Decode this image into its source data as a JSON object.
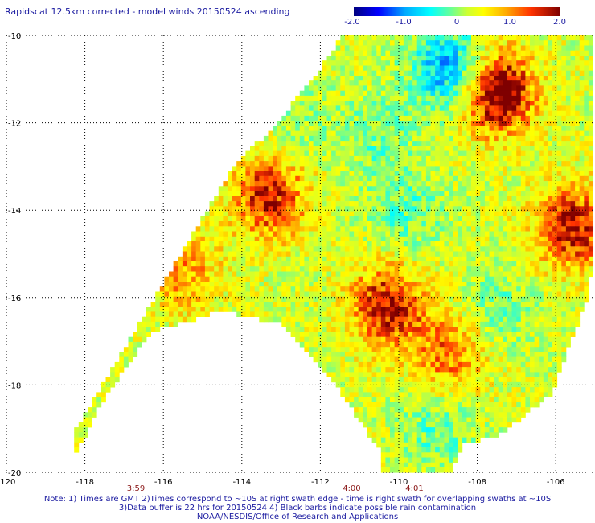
{
  "title": "Rapidscat 12.5km corrected - model winds 20150524 ascending",
  "colorbar": {
    "ticks": [
      "-2.0",
      "-1.0",
      "0",
      "1.0",
      "2.0"
    ],
    "values": [
      -2.0,
      -1.0,
      0,
      1.0,
      2.0
    ],
    "range": [
      -2.0,
      2.0
    ],
    "colors": [
      "#00007f",
      "#0000ff",
      "#00aaff",
      "#00ffff",
      "#66ff99",
      "#ccff33",
      "#ffff00",
      "#ffaa00",
      "#ff3300",
      "#7f0000"
    ]
  },
  "map": {
    "lat_range": [
      -20,
      -10
    ],
    "lon_range": [
      -120,
      -105
    ],
    "lat_labels": [
      "-10",
      "-12",
      "-14",
      "-16",
      "-18",
      "-20"
    ],
    "lat_values": [
      -10,
      -12,
      -14,
      -16,
      -18,
      -20
    ],
    "lon_labels": [
      "-120",
      "-118",
      "-116",
      "-114",
      "-112",
      "-110",
      "-108",
      "-106"
    ],
    "lon_values": [
      -120,
      -118,
      -116,
      -114,
      -112,
      -110,
      -108,
      -106
    ],
    "time_labels": [
      {
        "text": "3:59",
        "lon": -116.7
      },
      {
        "text": "4:00",
        "lon": -111.2
      },
      {
        "text": "4:01",
        "lon": -109.6
      }
    ],
    "time_color": "#8b1a1a",
    "grid_color": "#000000",
    "features": [
      {
        "lon": -113.3,
        "lat": -13.7,
        "intensity": 1.4
      },
      {
        "lon": -110.3,
        "lat": -16.2,
        "intensity": 1.5
      },
      {
        "lon": -108.7,
        "lat": -17.3,
        "intensity": 1.0
      },
      {
        "lon": -105.6,
        "lat": -14.4,
        "intensity": 1.5
      },
      {
        "lon": -107.5,
        "lat": -11.3,
        "intensity": 2.0
      },
      {
        "lon": -108.7,
        "lat": -10.8,
        "intensity": -1.5
      },
      {
        "lon": -110.5,
        "lat": -12.3,
        "intensity": -0.5
      },
      {
        "lon": -109.8,
        "lat": -14.0,
        "intensity": -0.6
      },
      {
        "lon": -107.5,
        "lat": -16.3,
        "intensity": -0.5
      },
      {
        "lon": -109.0,
        "lat": -19.0,
        "intensity": -0.6
      },
      {
        "lon": -115.5,
        "lat": -15.4,
        "intensity": 0.8
      },
      {
        "lon": -112.5,
        "lat": -12.0,
        "intensity": -0.3
      }
    ]
  },
  "notes": [
    "Note: 1) Times are GMT 2)Times correspond to ~10S at right swath edge - time is right swath for overlapping swaths at ~10S",
    "3)Data buffer is 22 hrs for 20150524 4) Black barbs indicate possible rain contamination",
    "NOAA/NESDIS/Office of Research and Applications"
  ]
}
